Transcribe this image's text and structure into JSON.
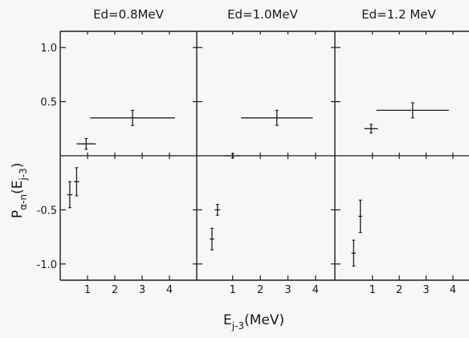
{
  "chart_data": [
    {
      "type": "scatter",
      "title": "Ed=0.8MeV",
      "xlim": [
        0,
        5
      ],
      "ylim": [
        -1.15,
        1.15
      ],
      "xticks": [
        1,
        2,
        3,
        4
      ],
      "xtick_labels": [
        "1",
        "2",
        "3",
        "4"
      ],
      "yticks": [
        -1.0,
        -0.5,
        0.5,
        1.0
      ],
      "ytick_labels": [
        "-1.0",
        "-0.5",
        "0.5",
        "1.0"
      ],
      "points": [
        {
          "x": 0.95,
          "y": 0.11,
          "xerr": 0.35,
          "yerr": 0.05
        },
        {
          "x": 2.65,
          "y": 0.35,
          "xerr": 1.55,
          "yerr": 0.07
        },
        {
          "x": 0.35,
          "y": -0.36,
          "xerr": 0.1,
          "yerr": 0.12
        },
        {
          "x": 0.6,
          "y": -0.24,
          "xerr": 0.1,
          "yerr": 0.13
        }
      ]
    },
    {
      "type": "scatter",
      "title": "Ed=1.0MeV",
      "xlim": [
        -0.3,
        4.7
      ],
      "ylim": [
        -1.15,
        1.15
      ],
      "xticks": [
        1,
        2,
        3,
        4
      ],
      "xtick_labels": [
        "1",
        "2",
        "3",
        "4"
      ],
      "yticks": [
        -1.0,
        -0.5,
        0.5,
        1.0
      ],
      "ytick_labels": [],
      "points": [
        {
          "x": 1.0,
          "y": 0.0,
          "xerr": 0.3,
          "yerr": 0.02
        },
        {
          "x": 2.6,
          "y": 0.35,
          "xerr": 1.3,
          "yerr": 0.07
        },
        {
          "x": 0.45,
          "y": -0.5,
          "xerr": 0.1,
          "yerr": 0.05
        },
        {
          "x": 0.25,
          "y": -0.77,
          "xerr": 0.08,
          "yerr": 0.1
        }
      ]
    },
    {
      "type": "scatter",
      "title": "Ed=1.2 MeV",
      "xlim": [
        -0.4,
        4.6
      ],
      "ylim": [
        -1.15,
        1.15
      ],
      "xticks": [
        1,
        2,
        3,
        4
      ],
      "xtick_labels": [
        "1",
        "2",
        "3",
        "4"
      ],
      "yticks": [
        -1.0,
        -0.5,
        0.5,
        1.0
      ],
      "ytick_labels": [],
      "points": [
        {
          "x": 0.95,
          "y": 0.25,
          "xerr": 0.25,
          "yerr": 0.04
        },
        {
          "x": 2.5,
          "y": 0.42,
          "xerr": 1.35,
          "yerr": 0.07
        },
        {
          "x": 0.55,
          "y": -0.56,
          "xerr": 0.07,
          "yerr": 0.15
        },
        {
          "x": 0.3,
          "y": -0.9,
          "xerr": 0.08,
          "yerr": 0.12
        }
      ]
    }
  ],
  "xlabel": {
    "main": "E",
    "sub": "j-3",
    "rest": "(MeV)"
  },
  "ylabel": {
    "main": "P",
    "sub": "α-n",
    "paren_main": "(E",
    "paren_sub": "j-3",
    "paren_close": ")"
  }
}
